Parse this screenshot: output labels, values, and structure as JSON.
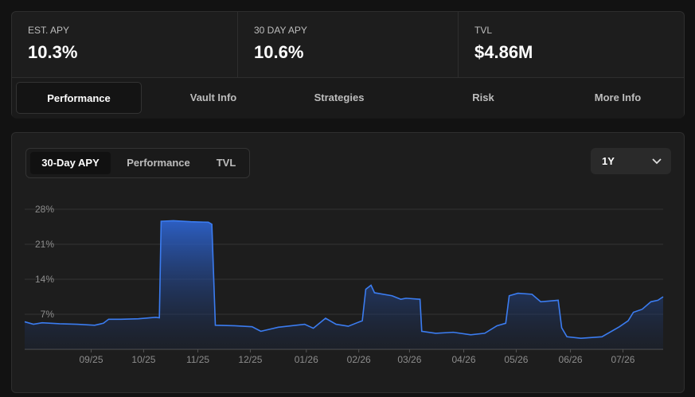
{
  "stats": [
    {
      "label": "EST. APY",
      "value": "10.3%"
    },
    {
      "label": "30 DAY APY",
      "value": "10.6%"
    },
    {
      "label": "TVL",
      "value": "$4.86M"
    }
  ],
  "tabs": [
    "Performance",
    "Vault Info",
    "Strategies",
    "Risk",
    "More Info"
  ],
  "chart_toggles": [
    "30-Day APY",
    "Performance",
    "TVL"
  ],
  "range_select": "1Y",
  "chart_data": {
    "type": "area",
    "color": "#3b7cf0",
    "grid": true,
    "x": [
      0,
      5,
      10,
      20,
      30,
      40,
      45,
      48,
      55,
      65,
      75,
      77,
      78,
      85,
      95,
      105,
      107,
      109,
      120,
      130,
      135,
      140,
      145,
      160,
      165,
      172,
      178,
      185,
      190,
      193,
      195,
      198,
      200,
      210,
      215,
      218,
      226,
      227,
      235,
      245,
      255,
      263,
      270,
      275,
      277,
      282,
      290,
      295,
      305,
      307,
      310,
      318,
      330,
      340,
      345,
      348,
      353,
      358,
      362,
      365
    ],
    "values": [
      5.5,
      5.0,
      5.3,
      5.1,
      5.0,
      4.8,
      5.2,
      6.0,
      6.0,
      6.1,
      6.4,
      6.3,
      25.6,
      25.7,
      25.5,
      25.4,
      25.0,
      4.8,
      4.7,
      4.5,
      3.6,
      4.0,
      4.4,
      5.0,
      4.2,
      6.2,
      5.0,
      4.6,
      5.3,
      5.7,
      12.0,
      12.8,
      11.3,
      10.7,
      10.0,
      10.2,
      10.0,
      3.6,
      3.2,
      3.4,
      2.9,
      3.2,
      4.7,
      5.2,
      10.7,
      11.2,
      11.0,
      9.5,
      9.8,
      4.3,
      2.5,
      2.2,
      2.5,
      4.5,
      5.7,
      7.4,
      8.0,
      9.5,
      9.8,
      10.5
    ],
    "xlim": [
      0,
      365
    ],
    "ylim": [
      0,
      28
    ],
    "yticks": [
      {
        "value": 7,
        "label": "7%"
      },
      {
        "value": 14,
        "label": "14%"
      },
      {
        "value": 21,
        "label": "21%"
      },
      {
        "value": 28,
        "label": "28%"
      }
    ],
    "xticks": [
      {
        "value": 38,
        "label": "09/25"
      },
      {
        "value": 68,
        "label": "10/25"
      },
      {
        "value": 99,
        "label": "11/25"
      },
      {
        "value": 129,
        "label": "12/25"
      },
      {
        "value": 161,
        "label": "01/26"
      },
      {
        "value": 191,
        "label": "02/26"
      },
      {
        "value": 220,
        "label": "03/26"
      },
      {
        "value": 251,
        "label": "04/26"
      },
      {
        "value": 281,
        "label": "05/26"
      },
      {
        "value": 312,
        "label": "06/26"
      },
      {
        "value": 342,
        "label": "07/26"
      }
    ]
  }
}
